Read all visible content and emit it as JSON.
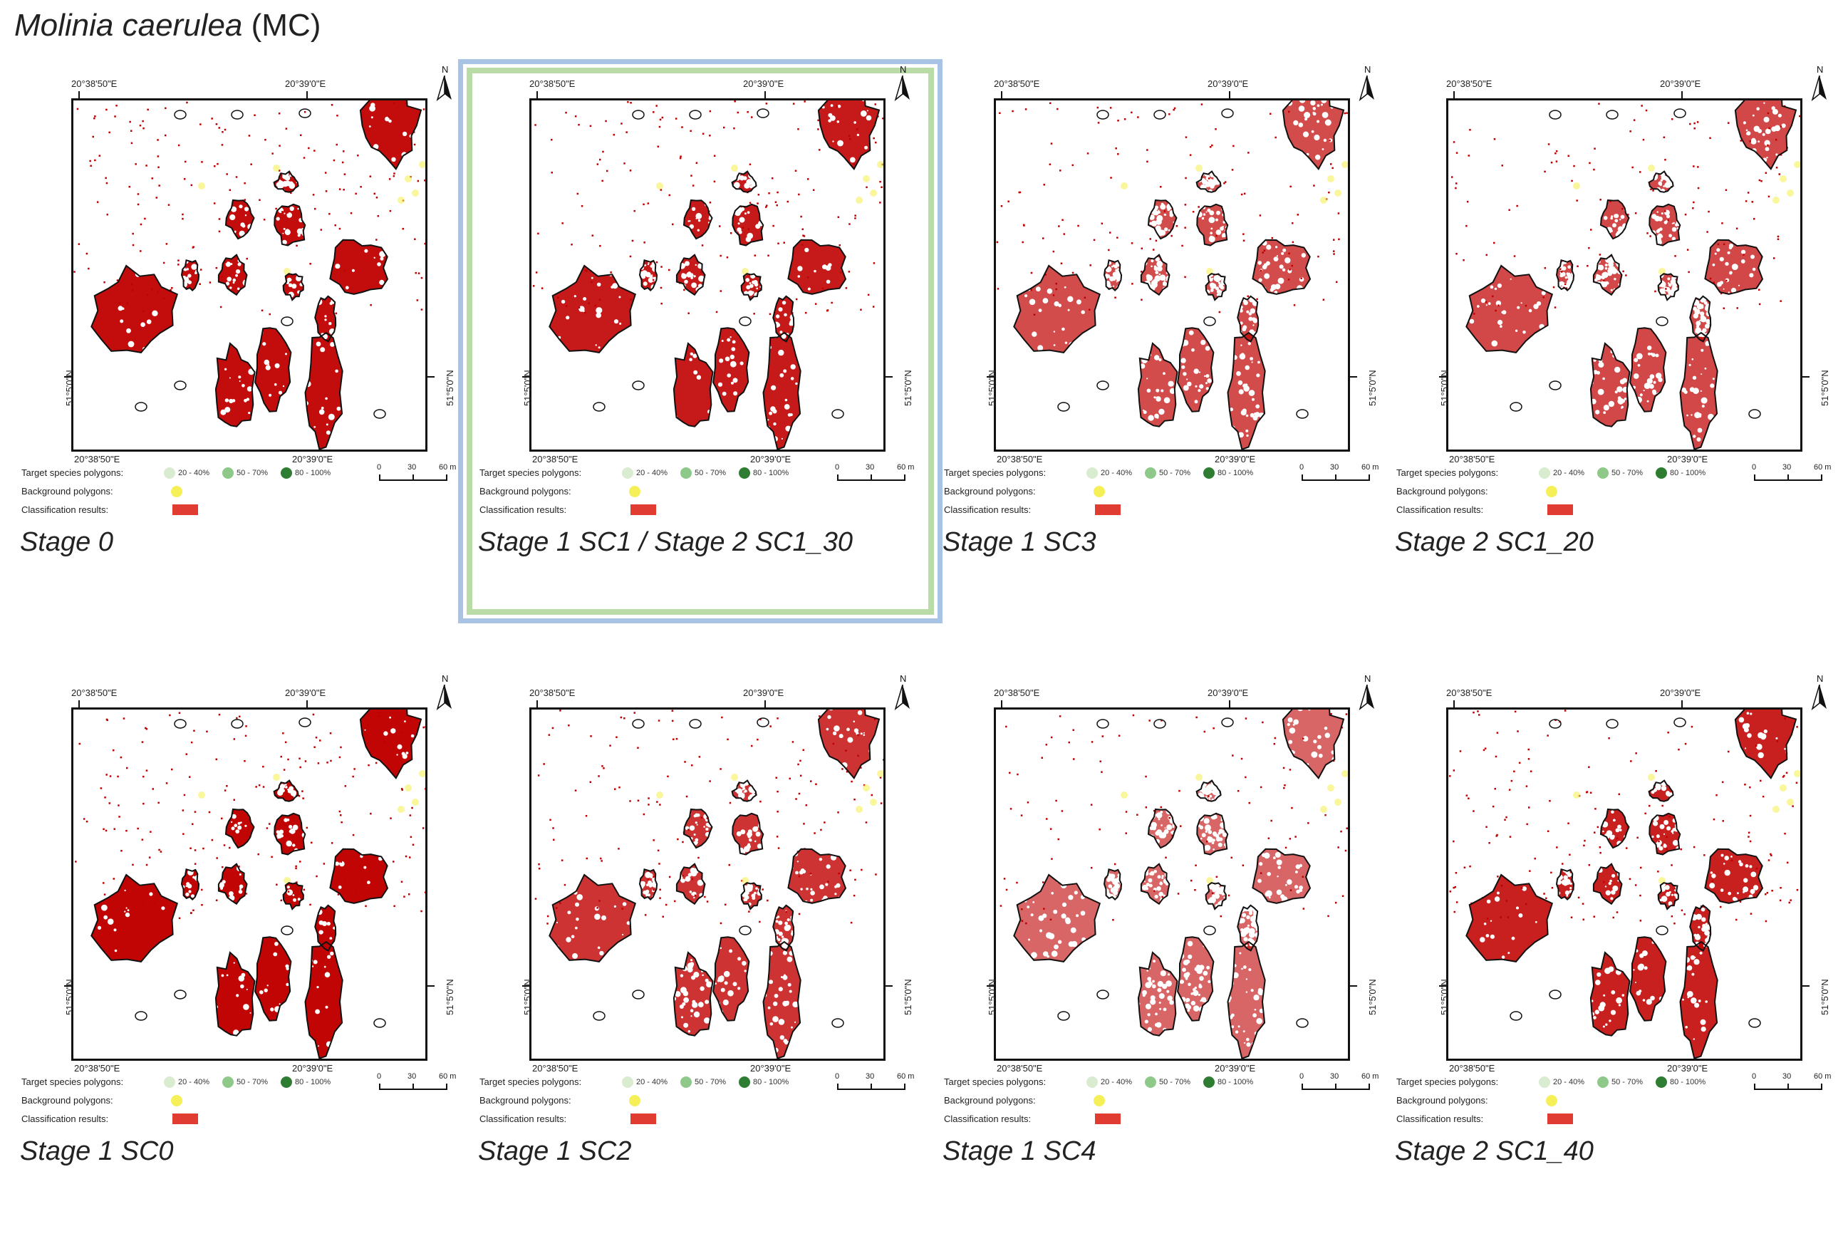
{
  "figure": {
    "species_name": "Molinia caerulea",
    "species_code": "(MC)"
  },
  "common": {
    "lon_left": "20°38'50\"E",
    "lon_right": "20°39'0\"E",
    "lat": "51°5'0\"N",
    "north": "N",
    "legend": {
      "target_label": "Target species polygons:",
      "background_label": "Background polygons:",
      "classification_label": "Classification results:",
      "class_ranges": [
        "20 - 40%",
        "50 - 70%",
        "80 - 100%"
      ],
      "class_colors": [
        "#d9ecd0",
        "#8fc98a",
        "#2e7d32"
      ],
      "background_color": "#f5f058",
      "classification_color": "#e03c31"
    },
    "scale": {
      "labels": [
        "0",
        "30",
        "60 m"
      ]
    }
  },
  "colors": {
    "highlight_outer": "#a9c3e4",
    "highlight_inner": "#b9dca6",
    "class_red": "#c00000"
  },
  "panels": [
    {
      "label": "Stage 0",
      "coverage": 0.85,
      "highlighted": false
    },
    {
      "label": "Stage 1 SC1 / Stage 2 SC1_30",
      "coverage": 0.8,
      "highlighted": true
    },
    {
      "label": "Stage 1 SC3",
      "coverage": 0.6,
      "highlighted": false
    },
    {
      "label": "Stage 2 SC1_20",
      "coverage": 0.62,
      "highlighted": false
    },
    {
      "label": "Stage 1 SC0",
      "coverage": 0.88,
      "highlighted": false
    },
    {
      "label": "Stage 1 SC2",
      "coverage": 0.7,
      "highlighted": false
    },
    {
      "label": "Stage 1 SC4",
      "coverage": 0.5,
      "highlighted": false
    },
    {
      "label": "Stage 2 SC1_40",
      "coverage": 0.78,
      "highlighted": false
    }
  ]
}
